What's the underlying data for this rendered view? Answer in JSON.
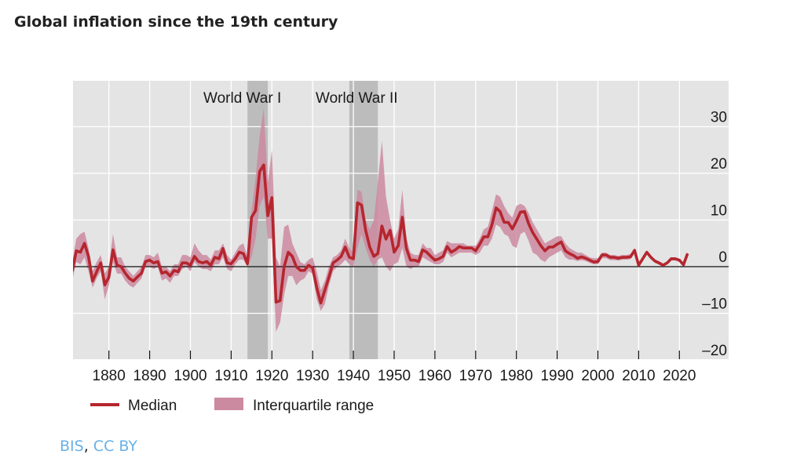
{
  "title": "Global inflation since the 19th century",
  "credit": {
    "source": "BIS",
    "separator": ",",
    "license": "CC BY"
  },
  "colors": {
    "median": "#b5262e",
    "iqr": "#cc8aa0",
    "war_band": "#bdbcbd",
    "plot_background": "#e4e4e4",
    "link": "#6ab0e6"
  },
  "chart_data": {
    "type": "line",
    "title": "Global inflation since the 19th century",
    "xlabel": "",
    "ylabel": "",
    "xlim": [
      1871,
      2032
    ],
    "ylim": [
      -20,
      39
    ],
    "y_axis_side": "right",
    "grid": true,
    "legend_placement": "bottom-left",
    "x_ticks": [
      1880,
      1890,
      1900,
      1910,
      1920,
      1930,
      1940,
      1950,
      1960,
      1970,
      1980,
      1990,
      2000,
      2010,
      2020
    ],
    "y_ticks": [
      30,
      20,
      10,
      0,
      -10,
      -20
    ],
    "y_tick_labels": [
      "30",
      "20",
      "10",
      "0",
      "–10",
      "–20"
    ],
    "legend": {
      "median": "Median",
      "iqr": "Interquartile range"
    },
    "shaded_periods": [
      {
        "label": "World War I",
        "start": 1914,
        "end": 1919
      },
      {
        "label": "World War II",
        "start": 1939,
        "end": 1946
      }
    ],
    "year_start": 1871,
    "median": [
      -1,
      3.4,
      3.1,
      5,
      2.2,
      -3.1,
      -1.1,
      0.8,
      -3.9,
      -2.2,
      3.6,
      0.3,
      0,
      -1.4,
      -2.5,
      -3.1,
      -2.2,
      -1.4,
      1.1,
      1.4,
      0.8,
      1.1,
      -1.4,
      -1.1,
      -2,
      -0.8,
      -1.1,
      0.8,
      0.8,
      0.3,
      2.2,
      1.1,
      0.8,
      1.1,
      0.3,
      2,
      1.7,
      3.9,
      0.8,
      0.6,
      1.7,
      3.1,
      2.8,
      0.6,
      10.6,
      12,
      20.4,
      21.8,
      10.9,
      14.8,
      -7.6,
      -7.3,
      0,
      3.1,
      2.2,
      0,
      -0.8,
      -0.8,
      0.3,
      -0.3,
      -4.5,
      -7.8,
      -5,
      -2.2,
      0.8,
      1.4,
      2.2,
      4.2,
      2,
      1.7,
      13.7,
      13.2,
      7.8,
      4.2,
      2.2,
      2.8,
      8.7,
      5.9,
      7.8,
      3.1,
      4.5,
      10.6,
      3.9,
      1.4,
      1.4,
      1.1,
      3.6,
      3.1,
      2.2,
      1.4,
      1.7,
      2.2,
      4.3,
      3.1,
      3.6,
      4.3,
      4,
      4,
      4,
      3.4,
      4.8,
      6.4,
      6.4,
      9,
      12.6,
      11.8,
      9.5,
      9.5,
      8.1,
      9.8,
      11.7,
      11.8,
      9.2,
      7.3,
      5.9,
      4.5,
      3.4,
      4.2,
      4.2,
      4.8,
      5.3,
      3.4,
      2.8,
      2.4,
      1.8,
      2.1,
      1.8,
      1.4,
      1,
      1.1,
      2.5,
      2.5,
      2,
      2,
      1.8,
      2,
      2,
      2.1,
      3.5,
      0.3,
      1.7,
      3.1,
      2,
      1.2,
      0.8,
      0.3,
      0.8,
      1.7,
      1.7,
      1.4,
      0.4,
      2.8
    ],
    "iqr_upper": [
      1,
      6,
      7,
      7.5,
      4,
      -1,
      1,
      2.5,
      -1.5,
      0,
      7,
      2,
      2,
      0,
      -1,
      -2,
      -1,
      0,
      2.5,
      2.5,
      2,
      3,
      0,
      0,
      -1,
      0.5,
      0.5,
      2.5,
      2.5,
      2,
      5,
      3.5,
      2.5,
      2.5,
      1.5,
      3.5,
      3.5,
      5,
      2.5,
      1.5,
      3,
      4.5,
      5,
      2,
      12,
      19,
      28,
      34,
      18,
      25,
      2,
      0,
      8.5,
      9,
      5,
      3,
      1,
      0.5,
      1.5,
      2,
      -1,
      -5,
      -3,
      0,
      2,
      2.5,
      3.5,
      6,
      4,
      3,
      16.5,
      16,
      10,
      8,
      10,
      18,
      27,
      15,
      10,
      6,
      8,
      16.5,
      6,
      3,
      2.5,
      2.5,
      5,
      4,
      4,
      2.5,
      3,
      3.5,
      5.5,
      5,
      5,
      5,
      5,
      4.5,
      4.5,
      4.5,
      6,
      8,
      8.5,
      12,
      15.5,
      15,
      13,
      11.5,
      10.5,
      13,
      13.5,
      13,
      11.5,
      9.5,
      8,
      6.5,
      5,
      5.5,
      6,
      6.5,
      6.5,
      5,
      4,
      3.5,
      3,
      3,
      2.5,
      2,
      1.8,
      1.8,
      3,
      3,
      2.5,
      2.5,
      2.3,
      2.5,
      2.5,
      2.7,
      3.8,
      0.8,
      2,
      3.4,
      2.4,
      1.6,
      1.1,
      0.6,
      1.1,
      2,
      2,
      1.7,
      0.7,
      3.2
    ],
    "iqr_lower": [
      -3,
      1,
      0.5,
      2,
      -1,
      -4.5,
      -2.5,
      -1,
      -7,
      -4,
      1,
      -1.5,
      -1.5,
      -3,
      -4,
      -4.5,
      -3.5,
      -2.5,
      0,
      0,
      -0.5,
      0,
      -3,
      -2.5,
      -3.5,
      -2,
      -2,
      -0.5,
      0,
      -1,
      1,
      0,
      -0.5,
      -0.5,
      -1,
      0.5,
      0.5,
      2,
      -0.5,
      -1,
      0.5,
      1.5,
      1.5,
      0,
      2,
      6,
      13,
      15,
      6,
      6,
      -14,
      -12,
      -6,
      -2,
      -2,
      -4,
      -3,
      -2.5,
      -1,
      -1.5,
      -7,
      -9.5,
      -8,
      -4,
      -1,
      0,
      0.5,
      1.5,
      0.5,
      0,
      4,
      7,
      4,
      1.5,
      0,
      1.5,
      2,
      0,
      -1,
      0.5,
      1,
      4,
      0,
      -0.5,
      0,
      0,
      2,
      1.5,
      1,
      0.5,
      0.5,
      1,
      3,
      2,
      2.5,
      3,
      3,
      3,
      3,
      2.5,
      3,
      4.5,
      4.5,
      6,
      9,
      8.5,
      7,
      6.5,
      4.5,
      4,
      7,
      7.5,
      5.5,
      3,
      2.5,
      1.5,
      1,
      2,
      2.5,
      3,
      3.5,
      2,
      1.5,
      1.5,
      1.2,
      1.4,
      1.2,
      0.8,
      0.5,
      0.5,
      1.8,
      1.8,
      1.4,
      1.4,
      1.3,
      1.5,
      1.5,
      1.6,
      3,
      0,
      1.3,
      2.7,
      1.6,
      0.8,
      0.4,
      0,
      0.5,
      1.3,
      1.3,
      1,
      0.1,
      2.4
    ]
  }
}
